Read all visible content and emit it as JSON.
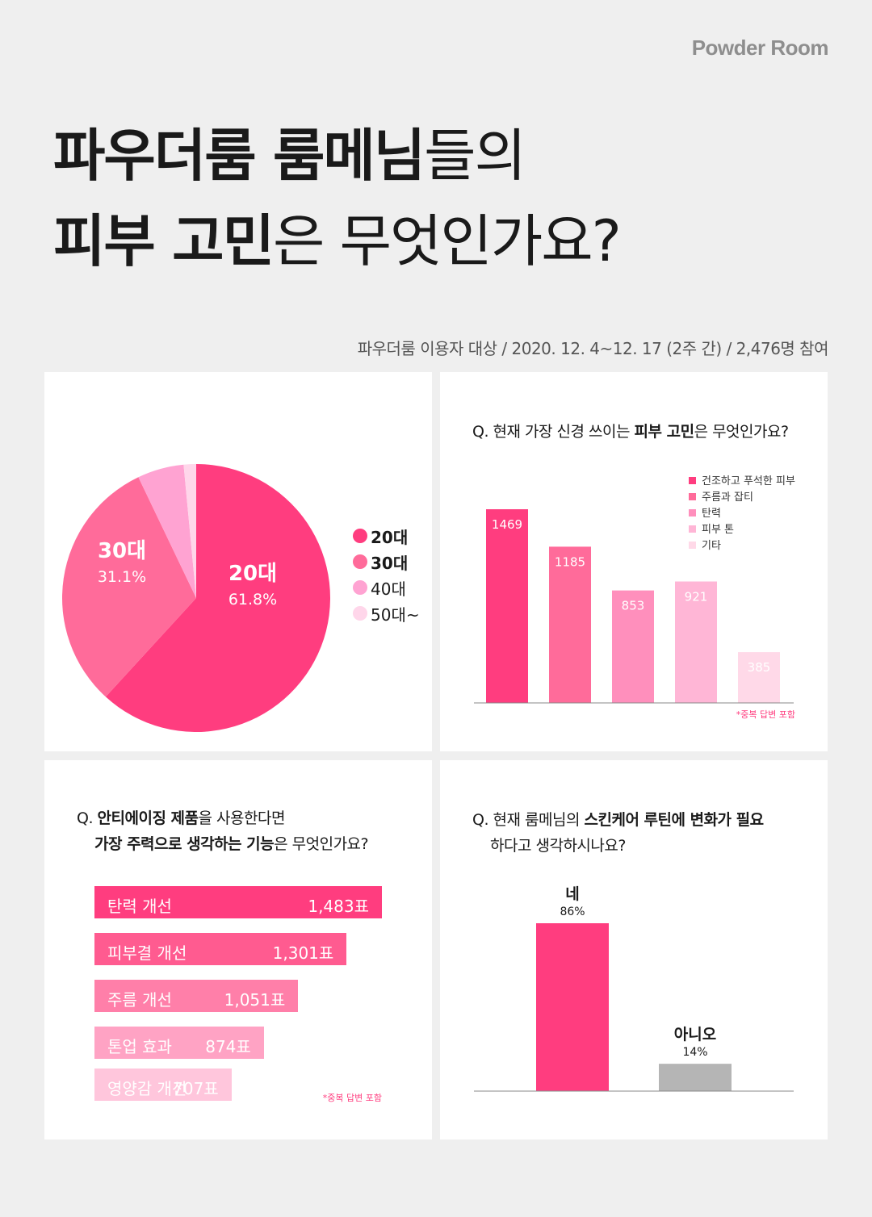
{
  "brand": "Powder Room",
  "title": {
    "line1_bold": "파우더룸 룸메님",
    "line1_light": "들의",
    "line2_bold": "피부 고민",
    "line2_light": "은 무엇인가요?"
  },
  "survey_info": "파우더룸 이용자 대상 / 2020. 12. 4~12. 17 (2주 간) / 2,476명 참여",
  "panel_age": {
    "slices": [
      {
        "label": "20대",
        "pct": "61.8%",
        "value": 61.8,
        "color": "#ff3d7f"
      },
      {
        "label": "30대",
        "pct": "31.1%",
        "value": 31.1,
        "color": "#ff6b9a"
      },
      {
        "label": "40대",
        "pct": "",
        "value": 5.6,
        "color": "#ffa3d2"
      },
      {
        "label": "50대~",
        "pct": "",
        "value": 1.5,
        "color": "#ffd6ea"
      }
    ],
    "legend": [
      "20대",
      "30대",
      "40대",
      "50대~"
    ]
  },
  "panel_concern": {
    "q_prefix": "Q. 현재 가장 신경 쓰이는 ",
    "q_bold": "피부 고민",
    "q_suffix": "은 무엇인가요?",
    "note": "*중복 답변 포함"
  },
  "panel_antiaging": {
    "q_line1_prefix": "Q. ",
    "q_line1_bold": "안티에이징 제품",
    "q_line1_suffix": "을 사용한다면",
    "q_line2_bold": "가장 주력으로 생각하는 기능",
    "q_line2_suffix": "은 무엇인가요?",
    "note": "*중복 답변 포함"
  },
  "panel_routine": {
    "q_line1_prefix": "Q. 현재 룸메님의 ",
    "q_line1_bold": "스킨케어 루틴에 변화가 필요",
    "q_line2": "하다고 생각하시나요?"
  },
  "chart_data": [
    {
      "type": "pie",
      "title": "",
      "series": [
        {
          "values": [
            61.8,
            31.1,
            5.6,
            1.5
          ]
        }
      ],
      "categories": [
        "20대",
        "30대",
        "40대",
        "50대~"
      ],
      "data_labels": {
        "20대": "61.8%",
        "30대": "31.1%"
      },
      "legend_position": "right"
    },
    {
      "type": "bar",
      "title": "Q. 현재 가장 신경 쓰이는 피부 고민은 무엇인가요?",
      "categories": [
        "건조하고 푸석한 피부",
        "주름과 잡티",
        "탄력",
        "피부 톤",
        "기타"
      ],
      "values": [
        1469,
        1185,
        853,
        921,
        385
      ],
      "colors": [
        "#ff3d7f",
        "#ff6b9a",
        "#ff8fbc",
        "#ffb6d6",
        "#ffd9e8"
      ],
      "legend_position": "top-right",
      "ylim": [
        0,
        1600
      ]
    },
    {
      "type": "bar",
      "orientation": "horizontal",
      "title": "Q. 안티에이징 제품을 사용한다면 가장 주력으로 생각하는 기능은 무엇인가요?",
      "categories": [
        "탄력 개선",
        "피부결 개선",
        "주름 개선",
        "톤업 효과",
        "영양감 개선"
      ],
      "values": [
        1483,
        1301,
        1051,
        874,
        707
      ],
      "value_labels": [
        "1,483표",
        "1,301표",
        "1,051표",
        "874표",
        "707표"
      ],
      "colors": [
        "#ff3d7f",
        "#ff5b90",
        "#ff7fa9",
        "#ffa3c4",
        "#ffc6dc"
      ]
    },
    {
      "type": "bar",
      "title": "Q. 현재 룸메님의 스킨케어 루틴에 변화가 필요하다고 생각하시나요?",
      "categories": [
        "네",
        "아니오"
      ],
      "values": [
        86,
        14
      ],
      "value_labels": [
        "86%",
        "14%"
      ],
      "colors": [
        "#ff3d7f",
        "#b5b5b5"
      ],
      "ylim": [
        0,
        100
      ]
    }
  ]
}
